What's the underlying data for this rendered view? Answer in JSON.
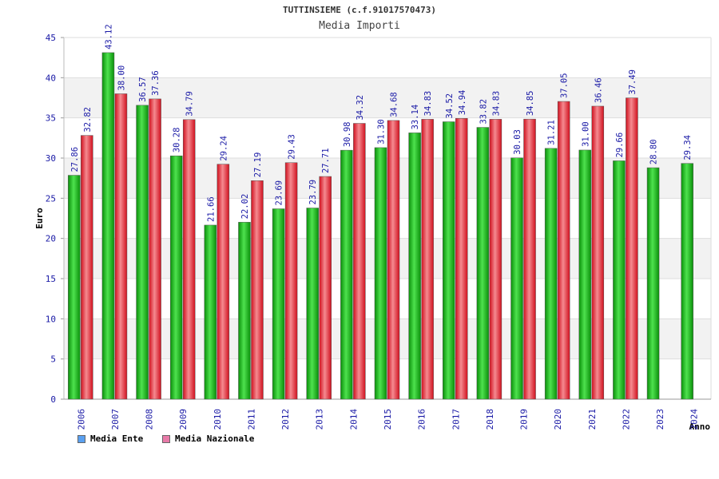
{
  "header": {
    "title": "TUTTINSIEME (c.f.91017570473)",
    "subtitle": "Media Importi"
  },
  "legend": {
    "items": [
      {
        "label": "Media Ente",
        "color": "#5aa0f0"
      },
      {
        "label": "Media Nazionale",
        "color": "#e87aa8"
      }
    ]
  },
  "chart_data": {
    "type": "bar",
    "title": "Media Importi",
    "xlabel": "Anno",
    "ylabel": "Euro",
    "ylim": [
      0,
      45
    ],
    "yticks": [
      0,
      5,
      10,
      15,
      20,
      25,
      30,
      35,
      40,
      45
    ],
    "categories": [
      "2006",
      "2007",
      "2008",
      "2009",
      "2010",
      "2011",
      "2012",
      "2013",
      "2014",
      "2015",
      "2016",
      "2017",
      "2018",
      "2019",
      "2020",
      "2021",
      "2022",
      "2023",
      "2024"
    ],
    "series": [
      {
        "name": "Media Ente",
        "color": "#1db81d",
        "values": [
          27.86,
          43.12,
          36.57,
          30.28,
          21.66,
          22.02,
          23.69,
          23.79,
          30.98,
          31.3,
          33.14,
          34.52,
          33.82,
          30.03,
          31.21,
          31.0,
          29.66,
          28.8,
          29.34
        ],
        "labels": [
          "27.86",
          "43.12",
          "36.57",
          "30.28",
          "21.66",
          "22.02",
          "23.69",
          "23.79",
          "30.98",
          "31.30",
          "33.14",
          "34.52",
          "33.82",
          "30.03",
          "31.21",
          "31.00",
          "29.66",
          "28.80",
          "29.34"
        ]
      },
      {
        "name": "Media Nazionale",
        "color": "#e8323c",
        "values": [
          32.82,
          38.0,
          37.36,
          34.79,
          29.24,
          27.19,
          29.43,
          27.71,
          34.32,
          34.68,
          34.83,
          34.94,
          34.83,
          34.85,
          37.05,
          36.46,
          37.49,
          null,
          null
        ],
        "labels": [
          "32.82",
          "38.00",
          "37.36",
          "34.79",
          "29.24",
          "27.19",
          "29.43",
          "27.71",
          "34.32",
          "34.68",
          "34.83",
          "34.94",
          "34.83",
          "34.85",
          "37.05",
          "36.46",
          "37.49",
          null,
          null
        ]
      }
    ]
  }
}
